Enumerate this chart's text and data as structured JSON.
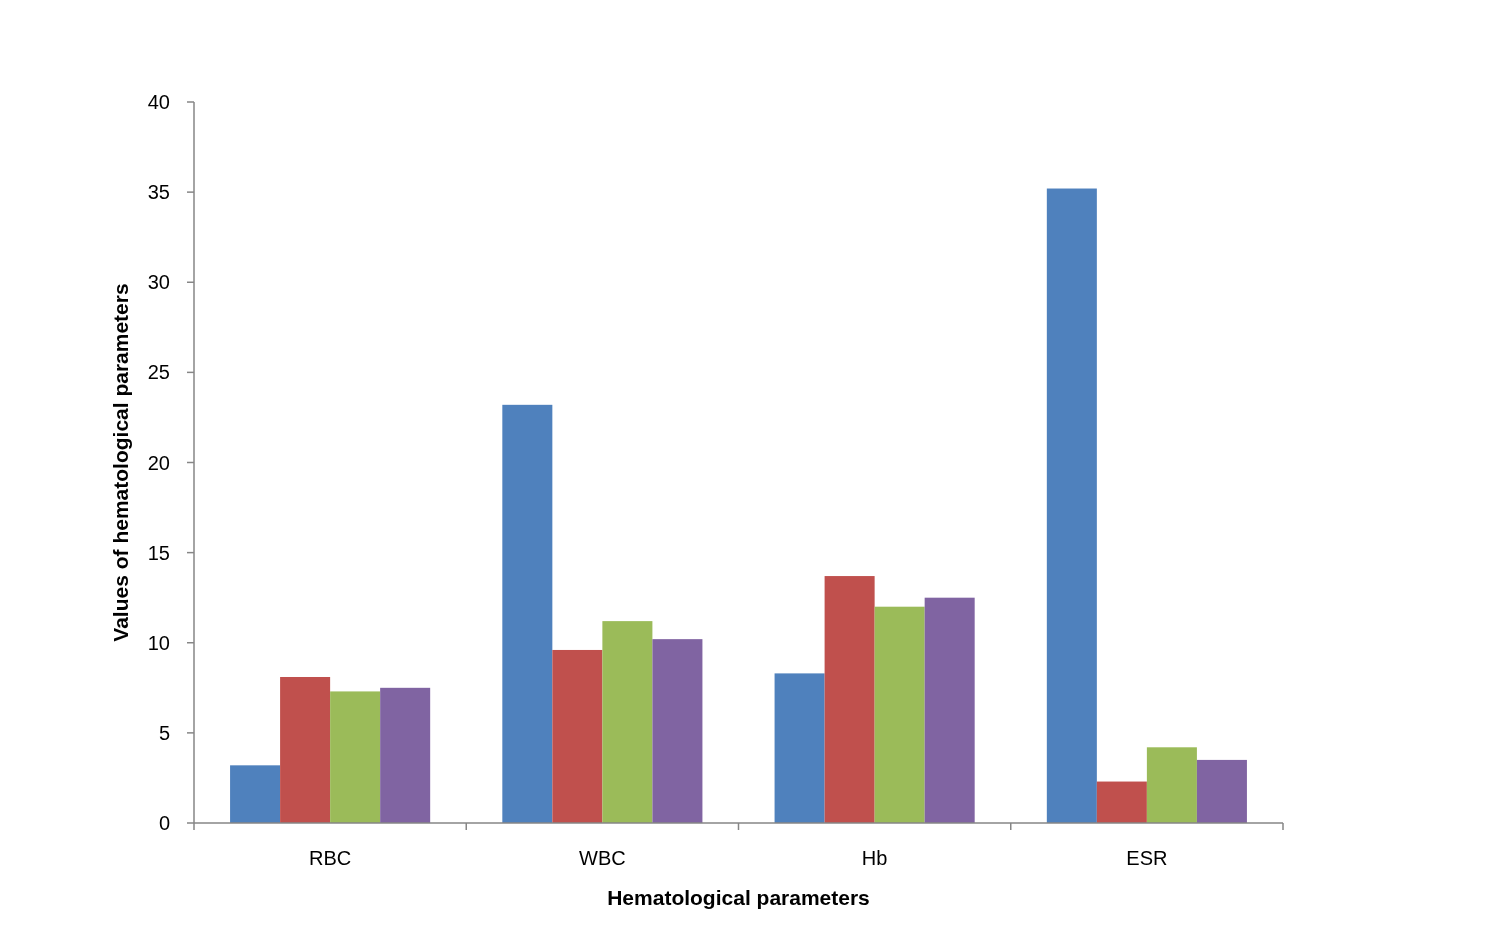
{
  "chart_data": {
    "type": "bar",
    "xlabel": "Hematological parameters",
    "ylabel": "Values of hematological parameters",
    "categories": [
      "RBC",
      "WBC",
      "Hb",
      "ESR"
    ],
    "series": [
      {
        "color": "#4f81bd",
        "values": [
          3.2,
          23.2,
          8.3,
          35.2
        ]
      },
      {
        "color": "#c0504d",
        "values": [
          8.1,
          9.6,
          13.7,
          2.3
        ]
      },
      {
        "color": "#9bbb59",
        "values": [
          7.3,
          11.2,
          12.0,
          4.2
        ]
      },
      {
        "color": "#8064a2",
        "values": [
          7.5,
          10.2,
          12.5,
          3.5
        ]
      }
    ],
    "ylim": [
      0,
      40
    ],
    "yticks": [
      0,
      5,
      10,
      15,
      20,
      25,
      30,
      35,
      40
    ],
    "grid": false
  }
}
